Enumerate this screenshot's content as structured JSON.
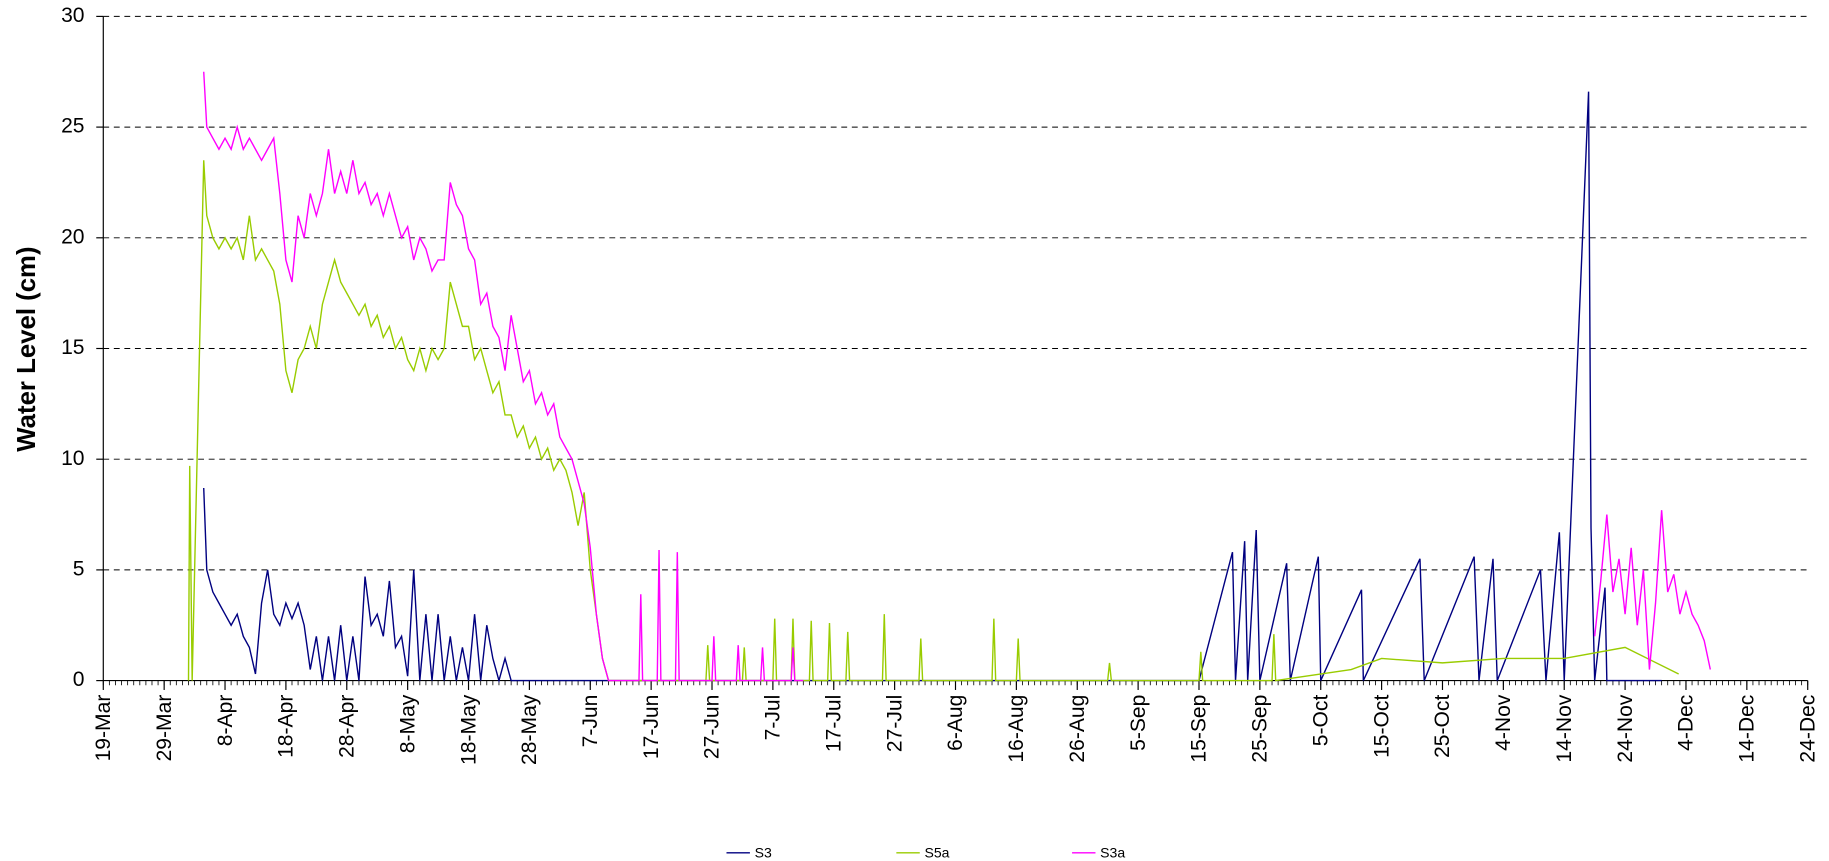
{
  "chart_data": {
    "type": "line",
    "y_label": "Water Level (cm)",
    "xlim": [
      0,
      280
    ],
    "xticks": [
      {
        "value": 0,
        "label": "19-Mar"
      },
      {
        "value": 10,
        "label": "29-Mar"
      },
      {
        "value": 20,
        "label": "8-Apr"
      },
      {
        "value": 30,
        "label": "18-Apr"
      },
      {
        "value": 40,
        "label": "28-Apr"
      },
      {
        "value": 50,
        "label": "8-May"
      },
      {
        "value": 60,
        "label": "18-May"
      },
      {
        "value": 70,
        "label": "28-May"
      },
      {
        "value": 80,
        "label": "7-Jun"
      },
      {
        "value": 90,
        "label": "17-Jun"
      },
      {
        "value": 100,
        "label": "27-Jun"
      },
      {
        "value": 110,
        "label": "7-Jul"
      },
      {
        "value": 120,
        "label": "17-Jul"
      },
      {
        "value": 130,
        "label": "27-Jul"
      },
      {
        "value": 140,
        "label": "6-Aug"
      },
      {
        "value": 150,
        "label": "16-Aug"
      },
      {
        "value": 160,
        "label": "26-Aug"
      },
      {
        "value": 170,
        "label": "5-Sep"
      },
      {
        "value": 180,
        "label": "15-Sep"
      },
      {
        "value": 190,
        "label": "25-Sep"
      },
      {
        "value": 200,
        "label": "5-Oct"
      },
      {
        "value": 210,
        "label": "15-Oct"
      },
      {
        "value": 220,
        "label": "25-Oct"
      },
      {
        "value": 230,
        "label": "4-Nov"
      },
      {
        "value": 240,
        "label": "14-Nov"
      },
      {
        "value": 250,
        "label": "24-Nov"
      },
      {
        "value": 260,
        "label": "4-Dec"
      },
      {
        "value": 270,
        "label": "14-Dec"
      },
      {
        "value": 280,
        "label": "24-Dec"
      }
    ],
    "ylim": [
      0,
      30
    ],
    "yticks": [
      0,
      5,
      10,
      15,
      20,
      25,
      30
    ],
    "grid": true,
    "legend": "bottom",
    "series": [
      {
        "name": "S3",
        "color": "#000080",
        "x": [
          16.5,
          17,
          18,
          19,
          20,
          21,
          22,
          23,
          24,
          25,
          26,
          27,
          28,
          29,
          30,
          31,
          32,
          33,
          34,
          35,
          36,
          37,
          38,
          39,
          40,
          41,
          42,
          43,
          44,
          45,
          46,
          47,
          48,
          49,
          50,
          51,
          52,
          53,
          54,
          55,
          56,
          57,
          58,
          59,
          60,
          61,
          62,
          63,
          64,
          65,
          66,
          67,
          80,
          120,
          150,
          170,
          180,
          185.5,
          186,
          187.5,
          188,
          189.4,
          190,
          194.4,
          195,
          199.6,
          200,
          206.7,
          207,
          216.3,
          217,
          225.2,
          226,
          228.3,
          229,
          236.1,
          237,
          239.2,
          240,
          244,
          244.4,
          245,
          246.7,
          247,
          256
        ],
        "values": [
          8.7,
          5,
          4,
          3.5,
          3,
          2.5,
          3,
          2,
          1.5,
          0.3,
          3.5,
          5,
          3,
          2.5,
          3.5,
          2.8,
          3.5,
          2.5,
          0.5,
          2,
          0,
          2,
          0,
          2.5,
          0,
          2,
          0,
          4.7,
          2.5,
          3,
          2,
          4.5,
          1.5,
          2,
          0.2,
          5,
          0,
          3,
          0,
          3,
          0,
          2,
          0,
          1.5,
          0,
          3,
          0,
          2.5,
          1,
          0,
          1,
          0,
          0,
          0,
          0,
          0,
          0,
          5.8,
          0,
          6.3,
          0,
          6.8,
          0,
          5.3,
          0,
          5.6,
          0,
          4.1,
          0,
          5.5,
          0,
          5.6,
          0,
          5.5,
          0,
          5,
          0,
          6.7,
          0,
          26.6,
          6.9,
          0,
          4.2,
          0,
          0
        ]
      },
      {
        "name": "S5a",
        "color": "#99cc00",
        "x": [
          14,
          14.2,
          14.6,
          16.5,
          17,
          18,
          19,
          20,
          21,
          22,
          23,
          24,
          25,
          26,
          27,
          28,
          29,
          30,
          31,
          32,
          33,
          34,
          35,
          36,
          37,
          38,
          39,
          40,
          41,
          42,
          43,
          44,
          45,
          46,
          47,
          48,
          49,
          50,
          51,
          52,
          53,
          54,
          55,
          56,
          57,
          58,
          59,
          60,
          61,
          62,
          63,
          64,
          65,
          66,
          67,
          68,
          69,
          70,
          71,
          72,
          73,
          74,
          75,
          76,
          77,
          78,
          79,
          80,
          81,
          82,
          83,
          99,
          99.3,
          99.6,
          105,
          105.3,
          105.6,
          110,
          110.3,
          110.6,
          113,
          113.3,
          113.6,
          116,
          116.3,
          116.6,
          119,
          119.3,
          119.6,
          122,
          122.3,
          122.6,
          128,
          128.3,
          128.6,
          134,
          134.3,
          134.6,
          146,
          146.3,
          146.6,
          150,
          150.3,
          150.6,
          165,
          165.3,
          165.6,
          180,
          180.3,
          180.6,
          192,
          192.3,
          192.6,
          205,
          210,
          220,
          230,
          240,
          250,
          258.8
        ],
        "values": [
          0,
          9.7,
          0,
          23.5,
          21,
          20,
          19.5,
          20,
          19.5,
          20,
          19,
          21,
          19,
          19.5,
          19,
          18.5,
          17,
          14,
          13,
          14.5,
          15,
          16,
          15,
          17,
          18,
          19,
          18,
          17.5,
          17,
          16.5,
          17,
          16,
          16.5,
          15.5,
          16,
          15,
          15.5,
          14.5,
          14,
          15,
          14,
          15,
          14.5,
          15,
          18,
          17,
          16,
          16,
          14.5,
          15,
          14,
          13,
          13.5,
          12,
          12,
          11,
          11.5,
          10.5,
          11,
          10,
          10.5,
          9.5,
          10,
          9.5,
          8.5,
          7,
          8.5,
          5,
          3,
          1,
          0,
          0,
          1.6,
          0,
          0,
          1.5,
          0,
          0,
          2.8,
          0,
          0,
          2.8,
          0,
          0,
          2.7,
          0,
          0,
          2.6,
          0,
          0,
          2.2,
          0,
          0,
          3,
          0,
          0,
          1.9,
          0,
          0,
          2.8,
          0,
          0,
          1.9,
          0,
          0,
          0.8,
          0,
          0,
          1.3,
          0,
          0,
          2.1,
          0,
          0.5,
          1,
          0.8,
          1,
          1,
          1.5,
          0.3
        ]
      },
      {
        "name": "S3a",
        "color": "#ff00ff",
        "x": [
          16.5,
          17,
          18,
          19,
          20,
          21,
          22,
          23,
          24,
          25,
          26,
          27,
          28,
          29,
          30,
          31,
          32,
          33,
          34,
          35,
          36,
          37,
          38,
          39,
          40,
          41,
          42,
          43,
          44,
          45,
          46,
          47,
          48,
          49,
          50,
          51,
          52,
          53,
          54,
          55,
          56,
          57,
          58,
          59,
          60,
          61,
          62,
          63,
          64,
          65,
          66,
          67,
          68,
          69,
          70,
          71,
          72,
          73,
          74,
          75,
          76,
          77,
          78,
          79,
          80,
          81,
          82,
          83,
          84,
          85,
          88,
          88.3,
          88.6,
          91,
          91.3,
          91.6,
          94,
          94.3,
          94.6,
          100,
          100.3,
          100.6,
          104,
          104.3,
          104.6,
          108,
          108.3,
          108.6,
          113,
          113.3,
          113.6,
          115,
          130,
          245,
          246,
          247,
          248,
          249,
          250,
          251,
          252,
          253,
          254,
          255,
          256,
          257,
          258,
          259,
          260,
          261,
          262,
          263,
          264
        ],
        "values": [
          27.5,
          25,
          24.5,
          24,
          24.5,
          24,
          25,
          24,
          24.5,
          24,
          23.5,
          24,
          24.5,
          22,
          19,
          18,
          21,
          20,
          22,
          21,
          22,
          24,
          22,
          23,
          22,
          23.5,
          22,
          22.5,
          21.5,
          22,
          21,
          22,
          21,
          20,
          20.5,
          19,
          20,
          19.5,
          18.5,
          19,
          19,
          22.5,
          21.5,
          21,
          19.5,
          19,
          17,
          17.5,
          16,
          15.5,
          14,
          16.5,
          15,
          13.5,
          14,
          12.5,
          13,
          12,
          12.5,
          11,
          10.5,
          10,
          9,
          8,
          6,
          3,
          1,
          0,
          0,
          0,
          0,
          3.9,
          0,
          0,
          5.9,
          0,
          0,
          5.8,
          0,
          0,
          2,
          0,
          0,
          1.6,
          0,
          0,
          1.5,
          0,
          0,
          1.5,
          0,
          0,
          null,
          2,
          4.5,
          7.5,
          4,
          5.5,
          3,
          6,
          2.5,
          5,
          0.5,
          3.5,
          7.7,
          4,
          4.8,
          3,
          4,
          3,
          2.5,
          1.8,
          0.5
        ]
      }
    ]
  }
}
